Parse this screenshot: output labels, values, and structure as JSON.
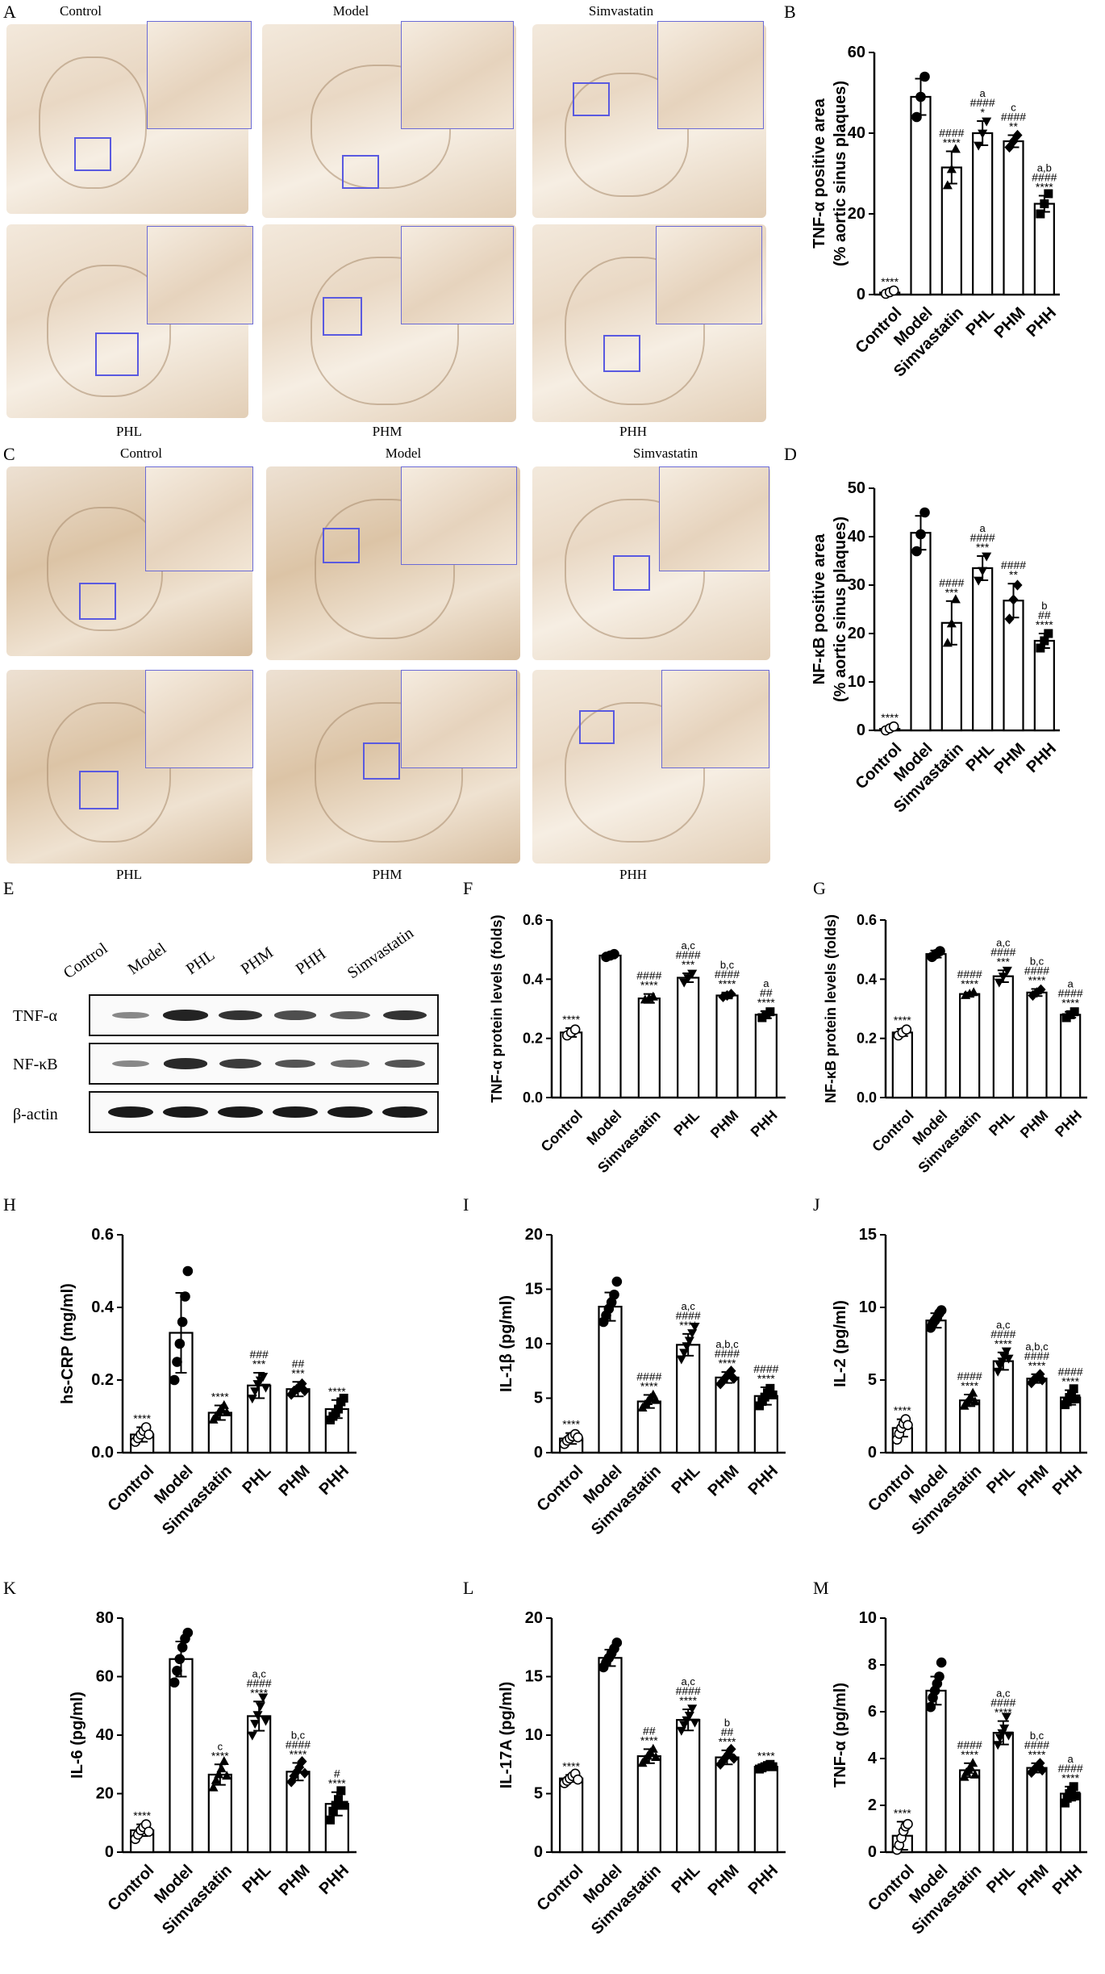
{
  "panel_letters": {
    "A": "A",
    "B": "B",
    "C": "C",
    "D": "D",
    "E": "E",
    "F": "F",
    "G": "G",
    "H": "H",
    "I": "I",
    "J": "J",
    "K": "K",
    "L": "L",
    "M": "M"
  },
  "micro_labels": {
    "a_top": [
      "Control",
      "Model",
      "Simvastatin"
    ],
    "a_bottom": [
      "PHL",
      "PHM",
      "PHH"
    ],
    "c_top": [
      "Control",
      "Model",
      "Simvastatin"
    ],
    "c_bottom": [
      "PHL",
      "PHM",
      "PHH"
    ]
  },
  "western_blot": {
    "lanes": [
      "Control",
      "Model",
      "PHL",
      "PHM",
      "PHH",
      "Simvastatin"
    ],
    "rows": [
      "TNF-α",
      "NF-κB",
      "β-actin"
    ],
    "intensities": {
      "TNF-α": [
        0.35,
        0.95,
        0.85,
        0.7,
        0.6,
        0.85
      ],
      "NF-κB": [
        0.35,
        0.9,
        0.8,
        0.65,
        0.5,
        0.65
      ],
      "β-actin": [
        1,
        1,
        1,
        1,
        1,
        1
      ]
    }
  },
  "colors": {
    "dot_fill": "#000000",
    "bar_fill": "#ffffff",
    "axis": "#000000",
    "zoom_box": "#5a5ae0"
  },
  "chart_data": [
    {
      "id": "B",
      "type": "bar",
      "categories": [
        "Control",
        "Model",
        "Simvastatin",
        "PHL",
        "PHM",
        "PHH"
      ],
      "values": [
        0.5,
        49,
        31.5,
        40,
        38,
        22.5
      ],
      "errors": [
        0.5,
        4.5,
        4,
        3,
        1.5,
        2
      ],
      "points": [
        [
          0.2,
          0.6,
          1.0
        ],
        [
          44,
          49,
          54
        ],
        [
          27,
          31,
          36
        ],
        [
          37,
          40,
          43
        ],
        [
          36.5,
          38,
          39.5
        ],
        [
          20,
          22.5,
          25
        ]
      ],
      "markers": [
        "circle-open",
        "circle",
        "triangle-up",
        "triangle-down",
        "diamond",
        "square"
      ],
      "ylabel": "TNF-α positive area\n(% aortic sinus plaques)",
      "ylim": [
        0,
        60
      ],
      "yticks": [
        0,
        20,
        40,
        60
      ],
      "annotations": [
        [
          "****"
        ],
        [],
        [
          "####",
          "****"
        ],
        [
          "a",
          "####",
          "*"
        ],
        [
          "c",
          "####",
          "**"
        ],
        [
          "a,b",
          "####",
          "****"
        ]
      ]
    },
    {
      "id": "D",
      "type": "bar",
      "categories": [
        "Control",
        "Model",
        "Simvastatin",
        "PHL",
        "PHM",
        "PHH"
      ],
      "values": [
        0.3,
        40.8,
        22.2,
        33.5,
        26.8,
        18.5
      ],
      "errors": [
        0.5,
        3.5,
        4.5,
        2.5,
        3.5,
        1.5
      ],
      "points": [
        [
          0,
          0.4,
          0.8
        ],
        [
          37,
          40.5,
          45
        ],
        [
          18,
          22,
          27
        ],
        [
          31,
          33,
          36
        ],
        [
          23,
          27,
          30
        ],
        [
          17,
          18.5,
          20
        ]
      ],
      "markers": [
        "circle-open",
        "circle",
        "triangle-up",
        "triangle-down",
        "diamond",
        "square"
      ],
      "ylabel": "NF-κB positive area\n(% aortic sinus plaques)",
      "ylim": [
        0,
        50
      ],
      "yticks": [
        0,
        10,
        20,
        30,
        40,
        50
      ],
      "annotations": [
        [
          "****"
        ],
        [],
        [
          "####",
          "***"
        ],
        [
          "a",
          "####",
          "***"
        ],
        [
          "####",
          "**"
        ],
        [
          "b",
          "##",
          "****"
        ]
      ]
    },
    {
      "id": "F",
      "type": "bar",
      "categories": [
        "Control",
        "Model",
        "Simvastatin",
        "PHL",
        "PHM",
        "PHH"
      ],
      "values": [
        0.22,
        0.48,
        0.335,
        0.405,
        0.345,
        0.28
      ],
      "errors": [
        0.015,
        0.01,
        0.015,
        0.015,
        0.01,
        0.012
      ],
      "points": [
        [
          0.21,
          0.22,
          0.23
        ],
        [
          0.475,
          0.48,
          0.485
        ],
        [
          0.33,
          0.335,
          0.34
        ],
        [
          0.39,
          0.405,
          0.42
        ],
        [
          0.34,
          0.345,
          0.35
        ],
        [
          0.27,
          0.28,
          0.29
        ]
      ],
      "markers": [
        "circle-open",
        "circle",
        "triangle-up",
        "triangle-down",
        "diamond",
        "square"
      ],
      "ylabel": "TNF-α protein levels (folds)",
      "ylim": [
        0,
        0.6
      ],
      "yticks": [
        0.0,
        0.2,
        0.4,
        0.6
      ],
      "annotations": [
        [
          "****"
        ],
        [],
        [
          "####",
          "****"
        ],
        [
          "a,c",
          "####",
          "***"
        ],
        [
          "b,c",
          "####",
          "****"
        ],
        [
          "a",
          "##",
          "****"
        ]
      ]
    },
    {
      "id": "G",
      "type": "bar",
      "categories": [
        "Control",
        "Model",
        "Simvastatin",
        "PHL",
        "PHM",
        "PHH"
      ],
      "values": [
        0.22,
        0.485,
        0.35,
        0.41,
        0.355,
        0.28
      ],
      "errors": [
        0.012,
        0.012,
        0.005,
        0.02,
        0.012,
        0.01
      ],
      "points": [
        [
          0.21,
          0.22,
          0.23
        ],
        [
          0.475,
          0.485,
          0.495
        ],
        [
          0.345,
          0.35,
          0.355
        ],
        [
          0.39,
          0.41,
          0.43
        ],
        [
          0.345,
          0.355,
          0.365
        ],
        [
          0.27,
          0.28,
          0.29
        ]
      ],
      "markers": [
        "circle-open",
        "circle",
        "triangle-up",
        "triangle-down",
        "diamond",
        "square"
      ],
      "ylabel": "NF-κB protein levels (folds)",
      "ylim": [
        0,
        0.6
      ],
      "yticks": [
        0.0,
        0.2,
        0.4,
        0.6
      ],
      "annotations": [
        [
          "****"
        ],
        [],
        [
          "####",
          "****"
        ],
        [
          "a,c",
          "####",
          "***"
        ],
        [
          "b,c",
          "####",
          "****"
        ],
        [
          "a",
          "####",
          "****"
        ]
      ]
    },
    {
      "id": "H",
      "type": "bar",
      "categories": [
        "Control",
        "Model",
        "Simvastatin",
        "PHL",
        "PHM",
        "PHH"
      ],
      "values": [
        0.05,
        0.33,
        0.11,
        0.185,
        0.175,
        0.12
      ],
      "errors": [
        0.02,
        0.11,
        0.02,
        0.035,
        0.02,
        0.025
      ],
      "points": [
        [
          0.03,
          0.04,
          0.05,
          0.06,
          0.07,
          0.05
        ],
        [
          0.2,
          0.25,
          0.3,
          0.36,
          0.43,
          0.5
        ],
        [
          0.09,
          0.1,
          0.11,
          0.12,
          0.13,
          0.11
        ],
        [
          0.15,
          0.17,
          0.19,
          0.2,
          0.21,
          0.18
        ],
        [
          0.16,
          0.17,
          0.175,
          0.18,
          0.19,
          0.17
        ],
        [
          0.09,
          0.1,
          0.11,
          0.12,
          0.14,
          0.15
        ]
      ],
      "markers": [
        "circle-open",
        "circle",
        "triangle-up",
        "triangle-down",
        "diamond",
        "square"
      ],
      "ylabel": "hs-CRP (mg/ml)",
      "ylim": [
        0,
        0.6
      ],
      "yticks": [
        0.0,
        0.2,
        0.4,
        0.6
      ],
      "annotations": [
        [
          "****"
        ],
        [],
        [
          "****"
        ],
        [
          "###",
          "***"
        ],
        [
          "##",
          "***"
        ],
        [
          "****"
        ]
      ]
    },
    {
      "id": "I",
      "type": "bar",
      "categories": [
        "Control",
        "Model",
        "Simvastatin",
        "PHL",
        "PHM",
        "PHH"
      ],
      "values": [
        1.3,
        13.4,
        4.7,
        9.9,
        6.9,
        5.2
      ],
      "errors": [
        0.5,
        1.3,
        0.6,
        1.0,
        0.5,
        0.8
      ],
      "points": [
        [
          0.8,
          1.1,
          1.3,
          1.5,
          1.7,
          1.4
        ],
        [
          12,
          12.6,
          13.2,
          13.8,
          14.5,
          15.7
        ],
        [
          4.1,
          4.4,
          4.7,
          5,
          5.3,
          4.8
        ],
        [
          8.6,
          9.2,
          9.8,
          10.3,
          11,
          11.6
        ],
        [
          6.3,
          6.6,
          6.9,
          7.2,
          7.5,
          6.8
        ],
        [
          4.3,
          4.7,
          5.1,
          5.5,
          5.9,
          5.3
        ]
      ],
      "markers": [
        "circle-open",
        "circle",
        "triangle-up",
        "triangle-down",
        "diamond",
        "square"
      ],
      "ylabel": "IL-1β (pg/ml)",
      "ylim": [
        0,
        20
      ],
      "yticks": [
        0,
        5,
        10,
        15,
        20
      ],
      "annotations": [
        [
          "****"
        ],
        [],
        [
          "####",
          "****"
        ],
        [
          "a,c",
          "####",
          "****"
        ],
        [
          "a,b,c",
          "####",
          "****"
        ],
        [
          "####",
          "****"
        ]
      ]
    },
    {
      "id": "J",
      "type": "bar",
      "categories": [
        "Control",
        "Model",
        "Simvastatin",
        "PHL",
        "PHM",
        "PHH"
      ],
      "values": [
        1.7,
        9.1,
        3.6,
        6.3,
        5.1,
        3.8
      ],
      "errors": [
        0.6,
        0.5,
        0.4,
        0.6,
        0.3,
        0.5
      ],
      "points": [
        [
          0.9,
          1.3,
          1.7,
          2,
          2.3,
          1.9
        ],
        [
          8.6,
          8.9,
          9.1,
          9.3,
          9.6,
          9.8
        ],
        [
          3.2,
          3.4,
          3.6,
          3.8,
          4.1,
          3.5
        ],
        [
          5.6,
          6,
          6.3,
          6.6,
          7,
          6.5
        ],
        [
          4.8,
          5,
          5.1,
          5.2,
          5.4,
          5.0
        ],
        [
          3.3,
          3.5,
          3.8,
          4,
          4.4,
          3.7
        ]
      ],
      "markers": [
        "circle-open",
        "circle",
        "triangle-up",
        "triangle-down",
        "diamond",
        "square"
      ],
      "ylabel": "IL-2 (pg/ml)",
      "ylim": [
        0,
        15
      ],
      "yticks": [
        0,
        5,
        10,
        15
      ],
      "annotations": [
        [
          "****"
        ],
        [],
        [
          "####",
          "****"
        ],
        [
          "a,c",
          "####",
          "****"
        ],
        [
          "a,b,c",
          "####",
          "****"
        ],
        [
          "####",
          "****"
        ]
      ]
    },
    {
      "id": "K",
      "type": "bar",
      "categories": [
        "Control",
        "Model",
        "Simvastatin",
        "PHL",
        "PHM",
        "PHH"
      ],
      "values": [
        7.5,
        66,
        26.5,
        46.5,
        27.5,
        16.5
      ],
      "errors": [
        2,
        6,
        3.5,
        5,
        3,
        4
      ],
      "points": [
        [
          4.5,
          6,
          7.5,
          8.5,
          9.5,
          7
        ],
        [
          58,
          62,
          66,
          70,
          73,
          75
        ],
        [
          22,
          24.5,
          26.5,
          28.5,
          31,
          26
        ],
        [
          40,
          44,
          47,
          50,
          53,
          45
        ],
        [
          24,
          26,
          27.5,
          29,
          31,
          27
        ],
        [
          11,
          14,
          16,
          18,
          21,
          16
        ]
      ],
      "markers": [
        "circle-open",
        "circle",
        "triangle-up",
        "triangle-down",
        "diamond",
        "square"
      ],
      "ylabel": "IL-6 (pg/ml)",
      "ylim": [
        0,
        80
      ],
      "yticks": [
        0,
        20,
        40,
        60,
        80
      ],
      "annotations": [
        [
          "****"
        ],
        [],
        [
          "c",
          "****"
        ],
        [
          "a,c",
          "####",
          "****"
        ],
        [
          "b,c",
          "####",
          "****"
        ],
        [
          "#",
          "****"
        ]
      ]
    },
    {
      "id": "L",
      "type": "bar",
      "categories": [
        "Control",
        "Model",
        "Simvastatin",
        "PHL",
        "PHM",
        "PHH"
      ],
      "values": [
        6.3,
        16.6,
        8.2,
        11.3,
        8.1,
        7.3
      ],
      "errors": [
        0.3,
        0.7,
        0.6,
        0.9,
        0.6,
        0.2
      ],
      "points": [
        [
          5.9,
          6.1,
          6.3,
          6.5,
          6.7,
          6.2
        ],
        [
          15.8,
          16.2,
          16.6,
          17,
          17.4,
          17.9
        ],
        [
          7.6,
          7.9,
          8.2,
          8.5,
          8.8,
          8.1
        ],
        [
          10.4,
          10.9,
          11.3,
          11.7,
          12.3,
          11.1
        ],
        [
          7.5,
          7.8,
          8.1,
          8.4,
          8.8,
          8.0
        ],
        [
          7.1,
          7.2,
          7.3,
          7.4,
          7.5,
          7.3
        ]
      ],
      "markers": [
        "circle-open",
        "circle",
        "triangle-up",
        "triangle-down",
        "diamond",
        "square"
      ],
      "ylabel": "IL-17A (pg/ml)",
      "ylim": [
        0,
        20
      ],
      "yticks": [
        0,
        5,
        10,
        15,
        20
      ],
      "annotations": [
        [
          "****"
        ],
        [],
        [
          "##",
          "****"
        ],
        [
          "a,c",
          "####",
          "****"
        ],
        [
          "b",
          "##",
          "****"
        ],
        [
          "****"
        ]
      ]
    },
    {
      "id": "M",
      "type": "bar",
      "categories": [
        "Control",
        "Model",
        "Simvastatin",
        "PHL",
        "PHM",
        "PHH"
      ],
      "values": [
        0.7,
        6.9,
        3.5,
        5.1,
        3.6,
        2.5
      ],
      "errors": [
        0.6,
        0.6,
        0.3,
        0.5,
        0.2,
        0.3
      ],
      "points": [
        [
          0.1,
          0.3,
          0.6,
          0.9,
          1.1,
          1.2
        ],
        [
          6.2,
          6.6,
          6.9,
          7.2,
          7.5,
          8.1
        ],
        [
          3.2,
          3.4,
          3.5,
          3.6,
          3.8,
          3.3
        ],
        [
          4.6,
          4.9,
          5.1,
          5.3,
          5.8,
          5.0
        ],
        [
          3.4,
          3.5,
          3.6,
          3.7,
          3.8,
          3.5
        ],
        [
          2.1,
          2.3,
          2.5,
          2.6,
          2.8,
          2.4
        ]
      ],
      "markers": [
        "circle-open",
        "circle",
        "triangle-up",
        "triangle-down",
        "diamond",
        "square"
      ],
      "ylabel": "TNF-α (pg/ml)",
      "ylim": [
        0,
        10
      ],
      "yticks": [
        0,
        2,
        4,
        6,
        8,
        10
      ],
      "annotations": [
        [
          "****"
        ],
        [],
        [
          "####",
          "****"
        ],
        [
          "a,c",
          "####",
          "****"
        ],
        [
          "b,c",
          "####",
          "****"
        ],
        [
          "a",
          "####",
          "****"
        ]
      ]
    }
  ]
}
